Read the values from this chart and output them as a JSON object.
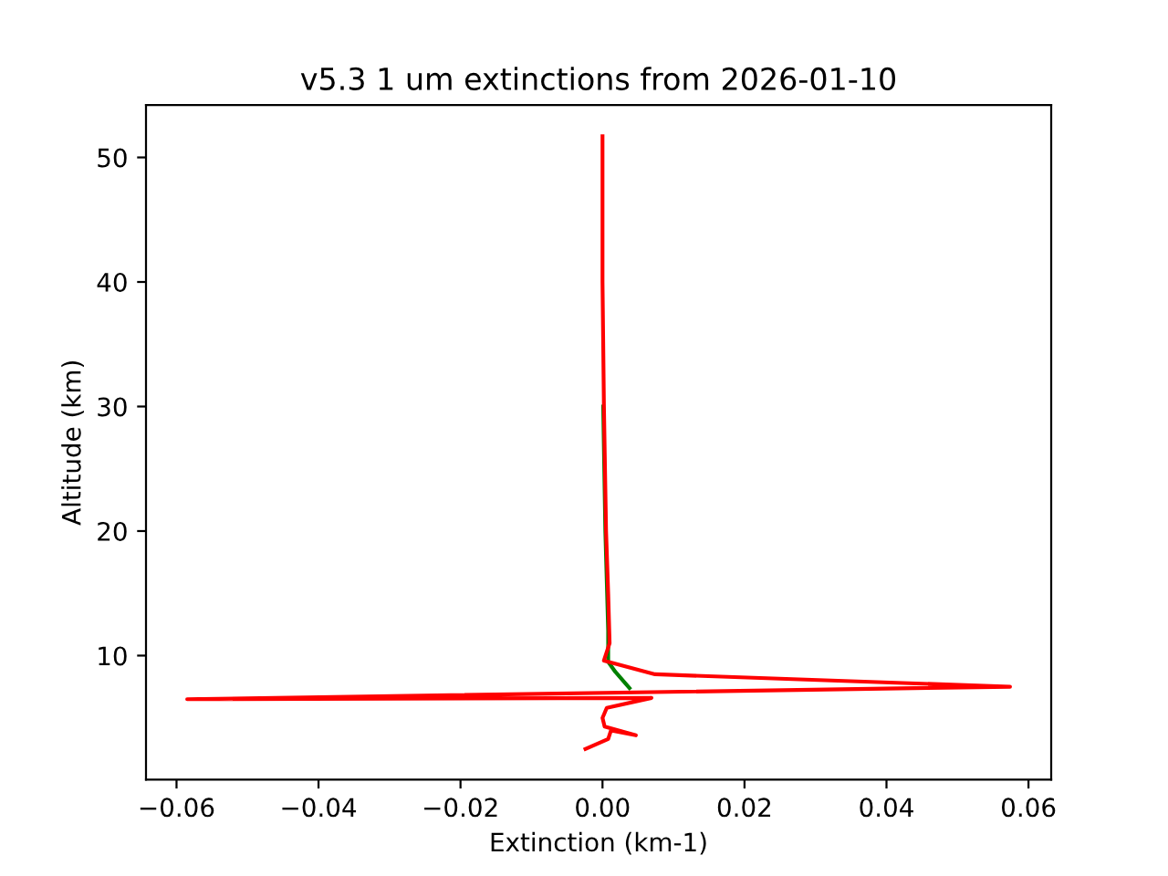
{
  "chart_data": {
    "type": "line",
    "title": "v5.3 1 um extinctions from 2026-01-10",
    "xlabel": "Extinction (km-1)",
    "ylabel": "Altitude (km)",
    "xlim": [
      -0.0643,
      0.0632
    ],
    "xticks": [
      {
        "value": -0.06,
        "label": "−0.06"
      },
      {
        "value": -0.04,
        "label": "−0.04"
      },
      {
        "value": -0.02,
        "label": "−0.02"
      },
      {
        "value": 0.0,
        "label": "0.00"
      },
      {
        "value": 0.02,
        "label": "0.02"
      },
      {
        "value": 0.04,
        "label": "0.04"
      },
      {
        "value": 0.06,
        "label": "0.06"
      }
    ],
    "ylim": [
      0.04,
      54.2
    ],
    "yticks": [
      10,
      20,
      30,
      40,
      50
    ],
    "grid": false,
    "legend": false,
    "series": [
      {
        "color": "#008000",
        "x": [
          0.0001,
          0.0004,
          0.0008,
          0.0008,
          0.0018,
          0.0038
        ],
        "values": [
          30,
          20,
          12,
          9.5,
          8.7,
          7.4
        ]
      },
      {
        "color": "#ff0000",
        "x": [
          0.0,
          0.0,
          0.0002,
          0.0005,
          0.0008,
          0.001,
          0.0002,
          0.0074,
          0.0574,
          -0.0585,
          0.0069,
          0.0006,
          0.0,
          0.0003,
          0.0047,
          0.0012,
          0.0008,
          -0.0024
        ],
        "values": [
          51.7,
          40,
          30,
          20,
          15,
          11,
          9.6,
          8.5,
          7.5,
          6.5,
          6.6,
          5.8,
          5.0,
          4.3,
          3.6,
          4.0,
          3.3,
          2.5
        ]
      }
    ]
  }
}
